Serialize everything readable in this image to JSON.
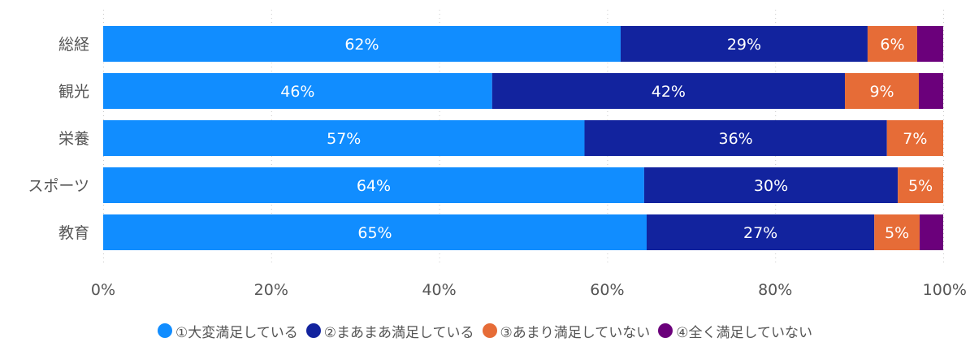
{
  "chart_data": {
    "type": "bar",
    "orientation": "horizontal",
    "stacked": true,
    "categories": [
      "総経",
      "観光",
      "栄養",
      "スポーツ",
      "教育"
    ],
    "series": [
      {
        "name": "①大変満足している",
        "color": "#118dff",
        "values": [
          61.6,
          46.3,
          57.3,
          64.4,
          64.7
        ]
      },
      {
        "name": "②まあまあ満足している",
        "color": "#12239e",
        "values": [
          29.4,
          42.0,
          36.0,
          30.2,
          27.1
        ]
      },
      {
        "name": "③あまり満足していない",
        "color": "#e66c37",
        "values": [
          5.9,
          8.8,
          6.7,
          5.4,
          5.4
        ]
      },
      {
        "name": "④全く満足していない",
        "color": "#6b007b",
        "values": [
          3.1,
          2.9,
          0.0,
          0.0,
          2.8
        ]
      }
    ],
    "data_labels": [
      [
        "62%",
        "29%",
        "6%",
        ""
      ],
      [
        "46%",
        "42%",
        "9%",
        ""
      ],
      [
        "57%",
        "36%",
        "7%",
        ""
      ],
      [
        "64%",
        "30%",
        "5%",
        ""
      ],
      [
        "65%",
        "27%",
        "5%",
        ""
      ]
    ],
    "xlim": [
      0,
      100
    ],
    "x_ticks": [
      "0%",
      "20%",
      "40%",
      "60%",
      "80%",
      "100%"
    ],
    "xlabel": "",
    "ylabel": "",
    "grid": true,
    "legend_position": "bottom"
  }
}
